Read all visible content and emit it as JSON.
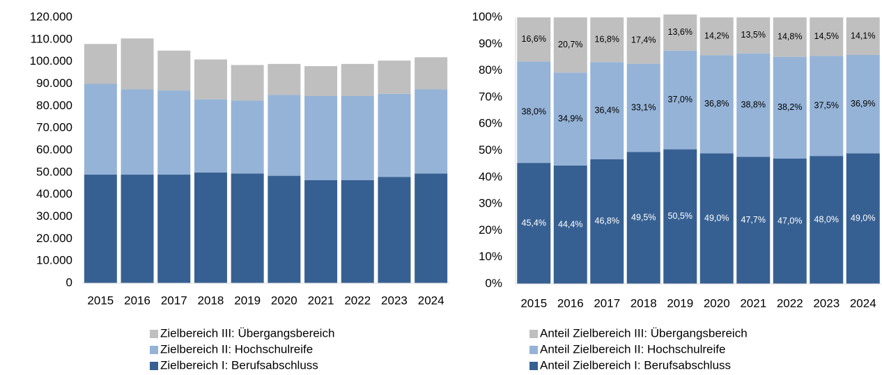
{
  "chart_data": [
    {
      "type": "stacked_bar",
      "categories": [
        "2015",
        "2016",
        "2017",
        "2018",
        "2019",
        "2020",
        "2021",
        "2022",
        "2023",
        "2024"
      ],
      "series": [
        {
          "name": "Zielbereich I: Berufsabschluss",
          "color": "#376092",
          "values": [
            49000,
            49000,
            49000,
            50000,
            49500,
            48500,
            46500,
            46500,
            48000,
            49500
          ]
        },
        {
          "name": "Zielbereich II: Hochschulreife",
          "color": "#95b3d7",
          "values": [
            41000,
            38500,
            38000,
            33000,
            33000,
            36500,
            38000,
            38000,
            37500,
            38000
          ]
        },
        {
          "name": "Zielbereich III: Übergangsbereich",
          "color": "#bfbfbf",
          "values": [
            18000,
            23000,
            18000,
            18000,
            16000,
            14000,
            13500,
            14500,
            15000,
            14500
          ]
        }
      ],
      "ylim": [
        0,
        120000
      ],
      "yticks": [
        0,
        {
          "value": 10000,
          "label": "10.000"
        },
        {
          "value": 20000,
          "label": "20.000"
        },
        {
          "value": 30000,
          "label": "30.000"
        },
        {
          "value": 40000,
          "label": "40.000"
        },
        {
          "value": 50000,
          "label": "50.000"
        },
        {
          "value": 60000,
          "label": "60.000"
        },
        {
          "value": 70000,
          "label": "70.000"
        },
        {
          "value": 80000,
          "label": "80.000"
        },
        {
          "value": 90000,
          "label": "90.000"
        },
        {
          "value": 100000,
          "label": "100.000"
        },
        {
          "value": 110000,
          "label": "110.000"
        },
        {
          "value": 120000,
          "label": "120.000"
        }
      ]
    },
    {
      "type": "stacked_bar",
      "categories": [
        "2015",
        "2016",
        "2017",
        "2018",
        "2019",
        "2020",
        "2021",
        "2022",
        "2023",
        "2024"
      ],
      "series": [
        {
          "name": "Anteil Zielbereich I: Berufsabschluss",
          "color": "#376092",
          "values": [
            45.4,
            44.4,
            46.8,
            49.5,
            50.5,
            49.0,
            47.7,
            47.0,
            48.0,
            49.0
          ],
          "value_labels": [
            "45,4%",
            "44,4%",
            "46,8%",
            "49,5%",
            "50,5%",
            "49,0%",
            "47,7%",
            "47,0%",
            "48,0%",
            "49,0%"
          ]
        },
        {
          "name": "Anteil Zielbereich II: Hochschulreife",
          "color": "#95b3d7",
          "values": [
            38.0,
            34.9,
            36.4,
            33.1,
            37.0,
            36.8,
            38.8,
            38.2,
            37.5,
            36.9
          ],
          "value_labels": [
            "38,0%",
            "34,9%",
            "36,4%",
            "33,1%",
            "37,0%",
            "36,8%",
            "38,8%",
            "38,2%",
            "37,5%",
            "36,9%"
          ]
        },
        {
          "name": "Anteil Zielbereich III: Übergangsbereich",
          "color": "#bfbfbf",
          "values": [
            16.6,
            20.7,
            16.8,
            17.4,
            13.6,
            14.2,
            13.5,
            14.8,
            14.5,
            14.1
          ],
          "value_labels": [
            "16,6%",
            "20,7%",
            "16,8%",
            "17,4%",
            "13,6%",
            "14,2%",
            "13,5%",
            "14,8%",
            "14,5%",
            "14,1%"
          ]
        }
      ],
      "ylim": [
        0,
        100
      ],
      "yticks": [
        {
          "value": 0,
          "label": "0%"
        },
        {
          "value": 10,
          "label": "10%"
        },
        {
          "value": 20,
          "label": "20%"
        },
        {
          "value": 30,
          "label": "30%"
        },
        {
          "value": 40,
          "label": "40%"
        },
        {
          "value": 50,
          "label": "50%"
        },
        {
          "value": 60,
          "label": "60%"
        },
        {
          "value": 70,
          "label": "70%"
        },
        {
          "value": 80,
          "label": "80%"
        },
        {
          "value": 90,
          "label": "90%"
        },
        {
          "value": 100,
          "label": "100%"
        }
      ]
    }
  ]
}
